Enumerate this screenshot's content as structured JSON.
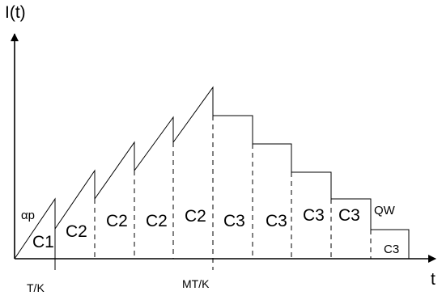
{
  "diagram": {
    "y_axis_label": "I(t)",
    "x_axis_label": "t",
    "alpha_label": "αp",
    "qw_label": "QW",
    "ticks": [
      {
        "id": "tk",
        "label": "T/K"
      },
      {
        "id": "mtk",
        "label": "MT/K"
      }
    ],
    "segment_labels": [
      "C1",
      "C2",
      "C2",
      "C2",
      "C2",
      "C3",
      "C3",
      "C3",
      "C3",
      "C3"
    ]
  }
}
